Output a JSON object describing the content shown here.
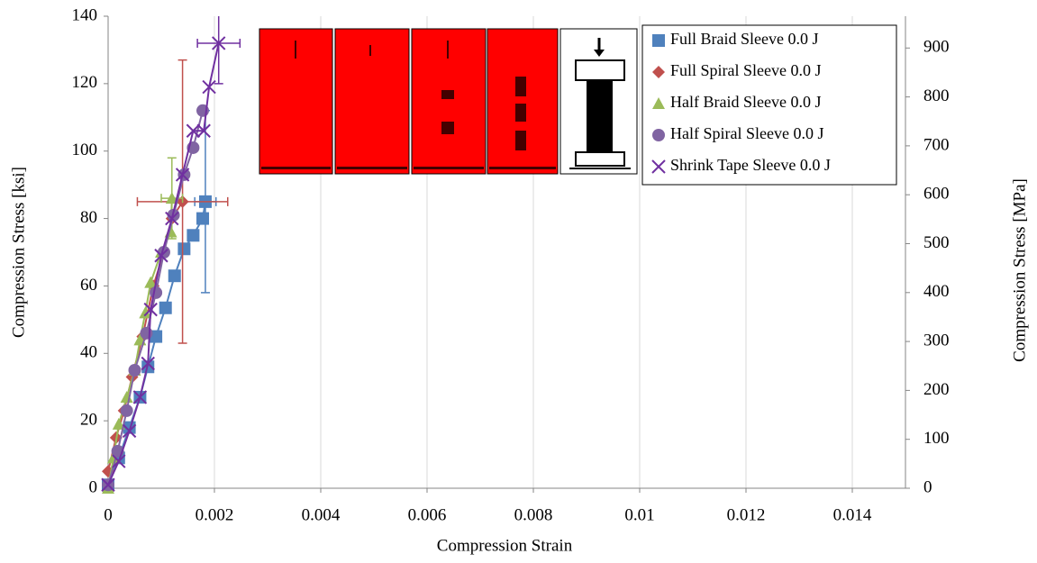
{
  "chart_data": {
    "type": "line",
    "xlabel": "Compression Strain",
    "ylabel": "Compression Stress [ksi]",
    "y2label": "Compression Stress [MPa]",
    "xlim": [
      0,
      0.015
    ],
    "xticks": [
      0,
      0.002,
      0.004,
      0.006,
      0.008,
      0.01,
      0.012,
      0.014
    ],
    "ylim": [
      0,
      140
    ],
    "yticks": [
      0,
      20,
      40,
      60,
      80,
      100,
      120,
      140
    ],
    "y2lim": [
      0,
      965
    ],
    "y2ticks": [
      0,
      100,
      200,
      300,
      400,
      500,
      600,
      700,
      800,
      900
    ],
    "grid": "x",
    "legend": "upper right",
    "series": [
      {
        "name": "Full Braid Sleeve 0.0 J",
        "color": "#4f81bd",
        "marker": "square",
        "x": [
          0,
          0.0002,
          0.0004,
          0.0006,
          0.00075,
          0.0009,
          0.00108,
          0.00125,
          0.00143,
          0.0016,
          0.00178,
          0.00183
        ],
        "values": [
          1,
          9,
          18,
          27,
          36,
          45,
          53.5,
          63,
          71,
          75,
          80,
          85
        ],
        "xerr": [
          null,
          null,
          null,
          null,
          null,
          null,
          null,
          null,
          null,
          null,
          null,
          0.0002
        ],
        "yerr": [
          null,
          null,
          null,
          null,
          null,
          null,
          null,
          null,
          null,
          null,
          null,
          27
        ]
      },
      {
        "name": "Full Spiral Sleeve 0.0 J",
        "color": "#c0504d",
        "marker": "diamond",
        "x": [
          0,
          0.00015,
          0.0003,
          0.00045,
          0.00065,
          0.00085,
          0.00105,
          0.0012,
          0.0014
        ],
        "values": [
          5,
          15,
          23,
          33,
          45,
          60,
          70,
          80,
          85
        ],
        "xerr": [
          null,
          null,
          null,
          null,
          null,
          null,
          null,
          null,
          0.00085
        ],
        "yerr": [
          null,
          null,
          null,
          null,
          null,
          null,
          null,
          null,
          42
        ]
      },
      {
        "name": "Half Braid Sleeve 0.0 J",
        "color": "#9bbb59",
        "marker": "triangle",
        "x": [
          0,
          0.0001,
          0.0002,
          0.00035,
          0.0005,
          0.0006,
          0.0007,
          0.0008,
          0.001,
          0.00118,
          0.0012
        ],
        "values": [
          0,
          9,
          19,
          27,
          35,
          44,
          52,
          61,
          70,
          76,
          86
        ],
        "xerr": [
          null,
          null,
          null,
          null,
          null,
          null,
          null,
          null,
          null,
          null,
          0.0002
        ],
        "yerr": [
          null,
          null,
          null,
          null,
          null,
          null,
          null,
          null,
          null,
          null,
          12
        ]
      },
      {
        "name": "Half Spiral Sleeve 0.0 J",
        "color": "#8064a2",
        "marker": "circle",
        "x": [
          0,
          0.00018,
          0.00035,
          0.0005,
          0.00072,
          0.0009,
          0.00105,
          0.00123,
          0.00143,
          0.0016,
          0.00178
        ],
        "values": [
          1,
          11,
          23,
          35,
          46,
          58,
          70,
          81,
          93,
          101,
          112
        ]
      },
      {
        "name": "Shrink Tape Sleeve 0.0 J",
        "color": "#7030a0",
        "marker": "x",
        "x": [
          0,
          0.0002,
          0.0004,
          0.0006,
          0.00075,
          0.0008,
          0.001,
          0.0012,
          0.0014,
          0.0016,
          0.0018,
          0.0019,
          0.00208
        ],
        "values": [
          1,
          8,
          17,
          27,
          37,
          53,
          69,
          80,
          93,
          106,
          106,
          119,
          132
        ],
        "xerr": [
          null,
          null,
          null,
          null,
          null,
          null,
          null,
          null,
          null,
          null,
          null,
          null,
          0.0004
        ],
        "yerr": [
          null,
          null,
          null,
          null,
          null,
          null,
          null,
          null,
          null,
          null,
          null,
          null,
          12
        ]
      }
    ]
  }
}
